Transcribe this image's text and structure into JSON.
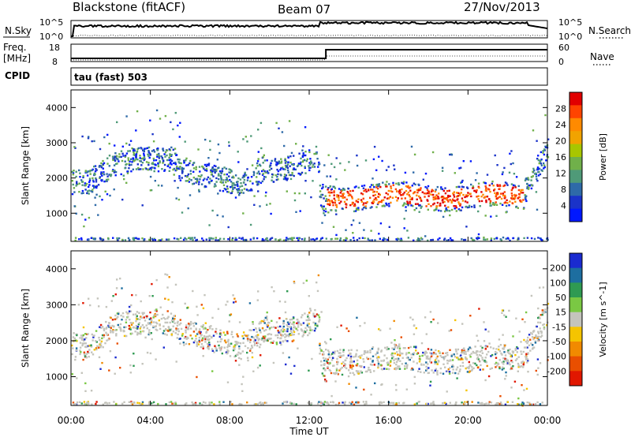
{
  "header": {
    "station": "Blackstone (fitACF)",
    "beam": "Beam 07",
    "date": "27/Nov/2013"
  },
  "panels": {
    "nsky_label": "N.Sky",
    "nsearch_label": "N.Search",
    "nsky_ticks": [
      "10^5",
      "10^0"
    ],
    "nsearch_ticks": [
      "10^5",
      "10^0"
    ],
    "freq_label": "Freq.",
    "freq_unit": "[MHz]",
    "freq_ticks": [
      "18",
      "8"
    ],
    "nave_label": "Nave",
    "nave_ticks": [
      "60",
      "0"
    ],
    "cpid_label": "CPID",
    "cpid_value": "tau (fast) 503"
  },
  "chart_data": [
    {
      "type": "heatmap",
      "name": "power",
      "ylabel": "Slant Range [km]",
      "ylim": [
        200,
        4500
      ],
      "y_ticks": [
        1000,
        2000,
        3000,
        4000
      ],
      "colorbar_label": "Power [dB]",
      "colorbar_ticks": [
        "28",
        "24",
        "20",
        "16",
        "12",
        "8",
        "4"
      ],
      "colorbar_colors": [
        "#e10000",
        "#ff4400",
        "#ff8a00",
        "#f1a300",
        "#a8c600",
        "#70b04a",
        "#4f9a78",
        "#2e6aa8",
        "#1a33c9",
        "#0018ff"
      ]
    },
    {
      "type": "heatmap",
      "name": "velocity",
      "ylabel": "Slant Range [km]",
      "ylim": [
        200,
        4500
      ],
      "y_ticks": [
        1000,
        2000,
        3000,
        4000
      ],
      "colorbar_label": "Velocity [m s^-1]",
      "colorbar_ticks": [
        "200",
        "100",
        "50",
        "15",
        "-15",
        "-50",
        "-100",
        "-200"
      ],
      "colorbar_colors": [
        "#1a2bd0",
        "#1d6ea0",
        "#2f9a52",
        "#7ac843",
        "#c4c4bc",
        "#f5c400",
        "#f18a00",
        "#e94f00",
        "#e11700"
      ]
    }
  ],
  "x_axis": {
    "label": "Time UT",
    "ticks": [
      "00:00",
      "04:00",
      "08:00",
      "12:00",
      "16:00",
      "20:00",
      "00:00"
    ]
  }
}
